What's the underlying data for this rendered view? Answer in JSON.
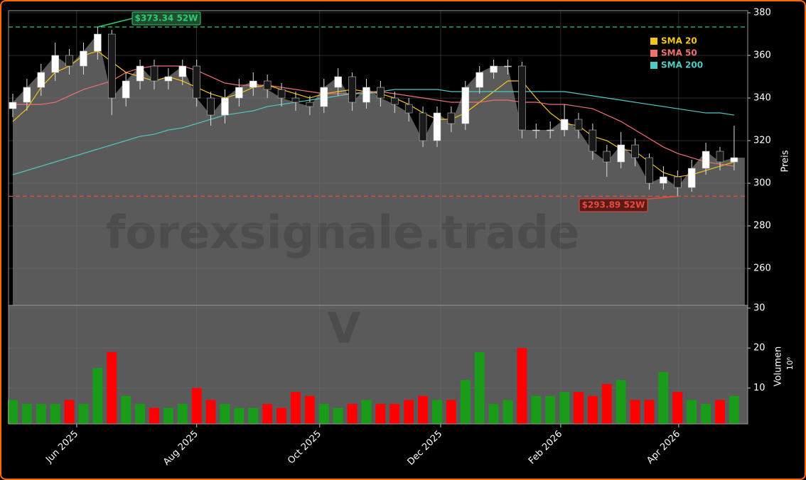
{
  "chart_data": [
    {
      "type": "candlestick",
      "xlim": [
        -0.3,
        51.96
      ],
      "xticks": [
        {
          "value": 4.52,
          "label": "Jun 2025"
        },
        {
          "value": 13.0,
          "label": "Aug 2025"
        },
        {
          "value": 21.7,
          "label": "Oct 2025"
        },
        {
          "value": 30.25,
          "label": "Dec 2025"
        },
        {
          "value": 38.74,
          "label": "Feb 2026"
        },
        {
          "value": 47.08,
          "label": "Apr 2026"
        }
      ],
      "ylim": [
        242.7,
        381
      ],
      "yticks": [
        260,
        280,
        300,
        320,
        340,
        360,
        380
      ],
      "ylabel": "Preis",
      "grid": true,
      "up_color": "#ffffff",
      "down_color": "#1a1a1a",
      "area_color": "#5a5a5a",
      "watermark": "forexsignale.trade",
      "symbol": "V",
      "open": [
        335,
        338,
        345,
        352,
        360,
        355,
        362,
        370,
        340,
        348,
        355,
        348,
        350,
        355,
        340,
        332,
        340,
        345,
        348,
        344,
        340,
        338,
        336,
        345,
        350,
        338,
        345,
        340,
        337,
        333,
        320,
        333,
        328,
        345,
        352,
        355,
        355,
        325,
        325,
        325,
        330,
        325,
        315,
        310,
        318,
        312,
        300,
        303,
        298,
        307,
        315,
        310
      ],
      "high": [
        342,
        349,
        356,
        366,
        363,
        366,
        373.34,
        372,
        352,
        358,
        358,
        354,
        358,
        358,
        343,
        344,
        349,
        352,
        351,
        347,
        343,
        341,
        349,
        354,
        352,
        349,
        348,
        343,
        340,
        336,
        336,
        336,
        348,
        355,
        358,
        358,
        357,
        328,
        329,
        337,
        333,
        328,
        318,
        324,
        321,
        314,
        308,
        306,
        311,
        319,
        317,
        327
      ],
      "low": [
        331,
        334,
        341,
        348,
        351,
        351,
        358,
        332,
        336,
        344,
        344,
        344,
        346,
        336,
        327,
        328,
        336,
        341,
        340,
        336,
        334,
        332,
        333,
        341,
        334,
        335,
        336,
        333,
        329,
        317,
        317,
        324,
        325,
        342,
        349,
        351,
        321,
        321,
        321,
        322,
        321,
        311,
        303,
        307,
        308,
        297,
        297,
        293.89,
        296,
        304,
        306,
        306
      ],
      "close": [
        338,
        345,
        352,
        360,
        355,
        362,
        370,
        340,
        348,
        355,
        348,
        350,
        355,
        340,
        332,
        340,
        345,
        348,
        344,
        340,
        338,
        336,
        345,
        350,
        338,
        345,
        340,
        337,
        333,
        320,
        333,
        328,
        345,
        352,
        355,
        355,
        325,
        325,
        325,
        330,
        325,
        315,
        310,
        318,
        312,
        300,
        303,
        298,
        307,
        315,
        310,
        312
      ],
      "series": [
        {
          "name": "SMA 20",
          "color": "#f5c518",
          "values": [
            329,
            335,
            345,
            352,
            355,
            360,
            362,
            357,
            352,
            350,
            348,
            350,
            348,
            345,
            342,
            340,
            342,
            345,
            346,
            344,
            342,
            340,
            342,
            343,
            344,
            343,
            342,
            340,
            337,
            333,
            330,
            330,
            333,
            338,
            343,
            348,
            348,
            340,
            333,
            328,
            327,
            322,
            320,
            316,
            315,
            310,
            305,
            303,
            304,
            306,
            308,
            310
          ]
        },
        {
          "name": "SMA 50",
          "color": "#f07070",
          "values": [
            337,
            337,
            337,
            338,
            341,
            344,
            346,
            348,
            352,
            354,
            355,
            355,
            355,
            353,
            350,
            347,
            346,
            346,
            346,
            345,
            344,
            343,
            342,
            342,
            342,
            343,
            343,
            342,
            341,
            340,
            339,
            338,
            338,
            338,
            339,
            339,
            338,
            338,
            337,
            337,
            336,
            335,
            332,
            329,
            325,
            321,
            317,
            314,
            312,
            310,
            309,
            308
          ]
        },
        {
          "name": "SMA 200",
          "color": "#4ecdc4",
          "values": [
            304,
            306,
            308,
            310,
            312,
            314,
            316,
            318,
            320,
            322,
            323,
            325,
            326,
            328,
            330,
            332,
            333,
            334,
            336,
            337,
            338,
            339,
            340,
            341,
            342,
            342,
            343,
            344,
            344,
            344,
            344,
            343,
            343,
            343,
            343,
            343,
            343,
            343,
            343,
            343,
            342,
            341,
            340,
            339,
            338,
            337,
            336,
            335,
            334,
            333,
            333,
            332
          ]
        }
      ],
      "annotations": [
        {
          "value": 373.34,
          "label": "$373.34 52W",
          "color": "#2ecc71"
        },
        {
          "value": 293.89,
          "label": "$293.89 52W",
          "color": "#e74c3c"
        }
      ]
    },
    {
      "type": "bar",
      "ylim": [
        1,
        30.7
      ],
      "yticks": [
        10,
        20,
        30
      ],
      "ylabel": "Volumen",
      "scale_label": "10⁶",
      "up_color": "#1a9c1a",
      "down_color": "#ff0000",
      "values": [
        7,
        6,
        6,
        6,
        7,
        6,
        15,
        19,
        8,
        6,
        5,
        5,
        6,
        10,
        7,
        6,
        5,
        5,
        6,
        5,
        9,
        8,
        6,
        5,
        6,
        7,
        6,
        6,
        7,
        8,
        7,
        7,
        12,
        19,
        6,
        7,
        20,
        8,
        8,
        9,
        9,
        8,
        11,
        12,
        7,
        7,
        14,
        9,
        7,
        6,
        7,
        8
      ]
    }
  ]
}
